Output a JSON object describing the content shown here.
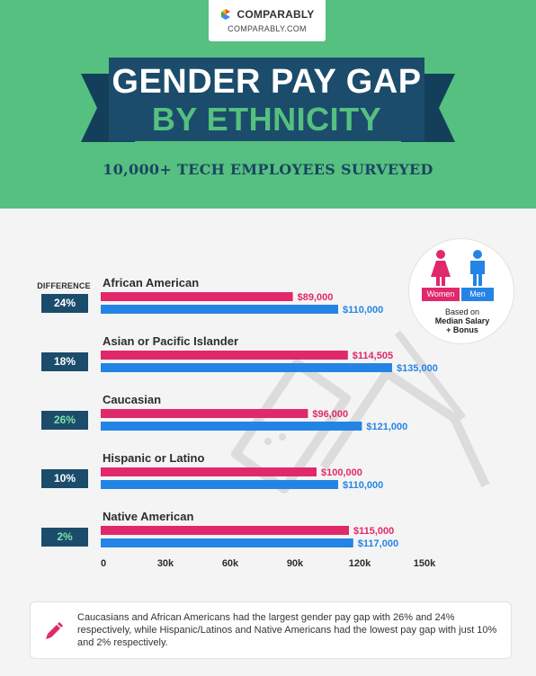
{
  "brand": {
    "name": "COMPARABLY",
    "url": "COMPARABLY.COM"
  },
  "title": {
    "line1": "GENDER PAY GAP",
    "line2": "BY ETHNICITY"
  },
  "subtitle": "10,000+ TECH EMPLOYEES SURVEYED",
  "difference_header": "DIFFERENCE",
  "legend": {
    "women": "Women",
    "men": "Men",
    "note_line1": "Based on",
    "note_line2": "Median Salary",
    "note_line3": "+ Bonus"
  },
  "callout": "Caucasians and African Americans had the largest gender pay gap with 26% and 24% respectively, while Hispanic/Latinos and Native Americans had the lowest pay gap with just 10% and 2% respectively.",
  "colors": {
    "women": "#e0286a",
    "men": "#2484e6",
    "navy": "#1c4c6c",
    "green": "#55c07f",
    "highlight": "#7ee0a7"
  },
  "chart_data": {
    "type": "bar",
    "orientation": "horizontal",
    "categories": [
      "African American",
      "Asian or Pacific Islander",
      "Caucasian",
      "Hispanic or Latino",
      "Native American"
    ],
    "differences": [
      "24%",
      "18%",
      "26%",
      "10%",
      "2%"
    ],
    "highlighted_differences": [
      false,
      false,
      true,
      false,
      true
    ],
    "series": [
      {
        "name": "Women",
        "values": [
          89000,
          114505,
          96000,
          100000,
          115000
        ],
        "labels": [
          "$89,000",
          "$114,505",
          "$96,000",
          "$100,000",
          "$115,000"
        ]
      },
      {
        "name": "Men",
        "values": [
          110000,
          135000,
          121000,
          110000,
          117000
        ],
        "labels": [
          "$110,000",
          "$135,000",
          "$121,000",
          "$110,000",
          "$117,000"
        ]
      }
    ],
    "xlim": [
      0,
      150000
    ],
    "xticks": [
      0,
      30000,
      60000,
      90000,
      120000,
      150000
    ],
    "xtick_labels": [
      "0",
      "30k",
      "60k",
      "90k",
      "120k",
      "150k"
    ],
    "grid": false
  }
}
